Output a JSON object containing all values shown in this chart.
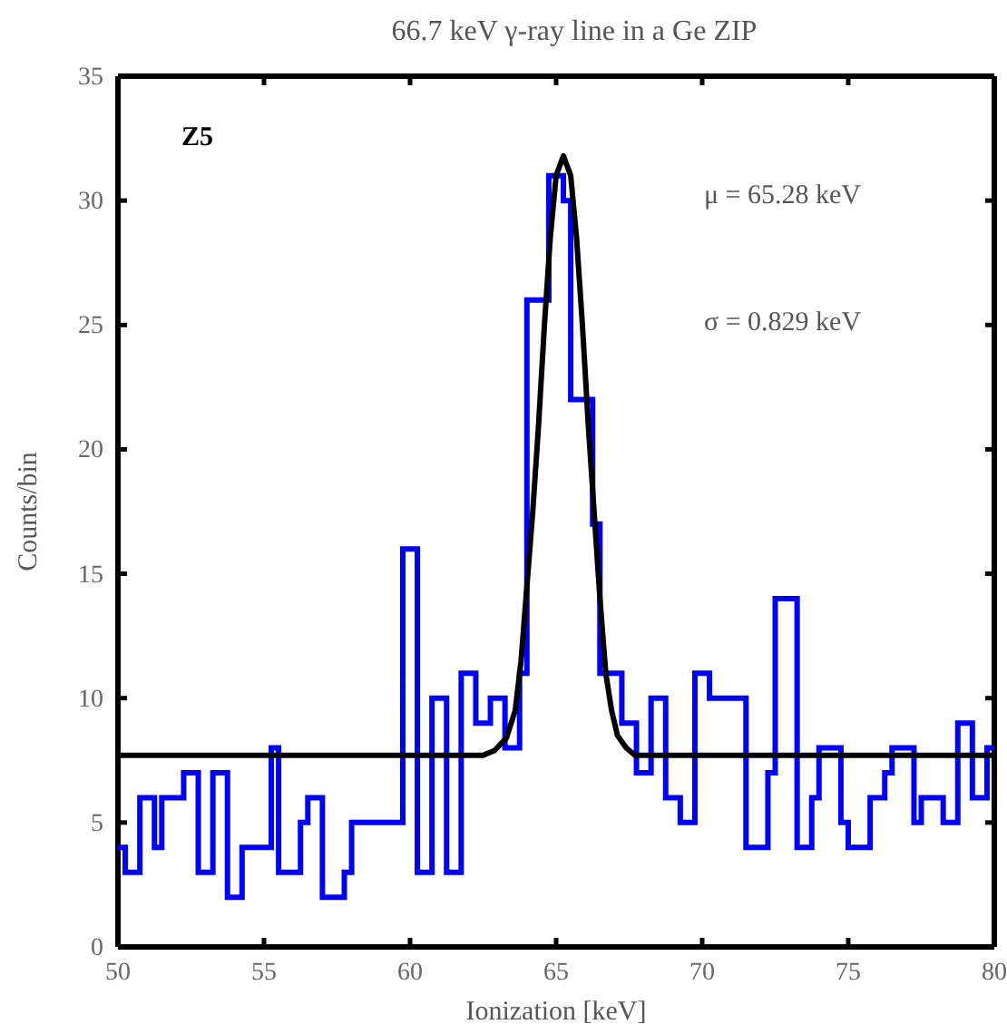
{
  "chart_data": {
    "type": "step",
    "title": "66.7 keV γ-ray line in a Ge ZIP",
    "xlabel": "Ionization [keV]",
    "ylabel": "Counts/bin",
    "annotations": [
      "Z5",
      "μ = 65.28 keV",
      "σ = 0.829 keV"
    ],
    "xlim": [
      50,
      80
    ],
    "xticks": [
      50,
      55,
      60,
      65,
      70,
      75,
      80
    ],
    "ylim": [
      0,
      35
    ],
    "yticks": [
      0,
      5,
      10,
      15,
      20,
      25,
      30,
      35
    ],
    "series": [
      {
        "color": "#0000ff",
        "x": [
          50,
          50.25,
          50.75,
          51.25,
          51.5,
          52.25,
          52.75,
          53.25,
          53.75,
          54.25,
          55.25,
          55.5,
          56.25,
          56.5,
          57,
          57.75,
          58,
          59.75,
          60.25,
          60.75,
          61.25,
          61.75,
          62.25,
          62.75,
          63.25,
          63.75,
          64,
          64.75,
          65.25,
          65.5,
          66.25,
          66.5,
          67.25,
          67.75,
          68.25,
          68.75,
          69.25,
          69.75,
          70.25,
          71.5,
          72.25,
          72.5,
          73.25,
          73.75,
          74,
          74.75,
          75,
          75.75,
          76.25,
          76.5,
          77.25,
          77.5,
          78.25,
          78.75,
          79.25,
          79.75,
          80
        ],
        "values": [
          4,
          3,
          6,
          4,
          6,
          7,
          3,
          7,
          2,
          4,
          8,
          3,
          5,
          6,
          2,
          3,
          5,
          16,
          3,
          10,
          3,
          11,
          9,
          10,
          8,
          11,
          26,
          31,
          30,
          22,
          17,
          11,
          9,
          7,
          10,
          6,
          5,
          11,
          10,
          4,
          7,
          14,
          4,
          6,
          8,
          5,
          4,
          6,
          7,
          8,
          5,
          6,
          5,
          9,
          6,
          8,
          8
        ]
      },
      {
        "type": "line",
        "color": "#000000",
        "x": [
          50,
          62.5,
          62.9,
          63.3,
          63.6,
          63.8,
          64,
          64.2,
          64.4,
          64.6,
          64.8,
          65,
          65.25,
          65.5,
          65.7,
          65.9,
          66.1,
          66.3,
          66.5,
          66.7,
          66.9,
          67.1,
          67.4,
          67.7,
          80
        ],
        "values": [
          7.7,
          7.7,
          7.9,
          8.4,
          9.5,
          11.5,
          14.5,
          17.5,
          21,
          25,
          28.5,
          31,
          31.8,
          31,
          28.5,
          25,
          21,
          17.5,
          14,
          11,
          9.5,
          8.5,
          8,
          7.7,
          7.7
        ]
      }
    ]
  }
}
